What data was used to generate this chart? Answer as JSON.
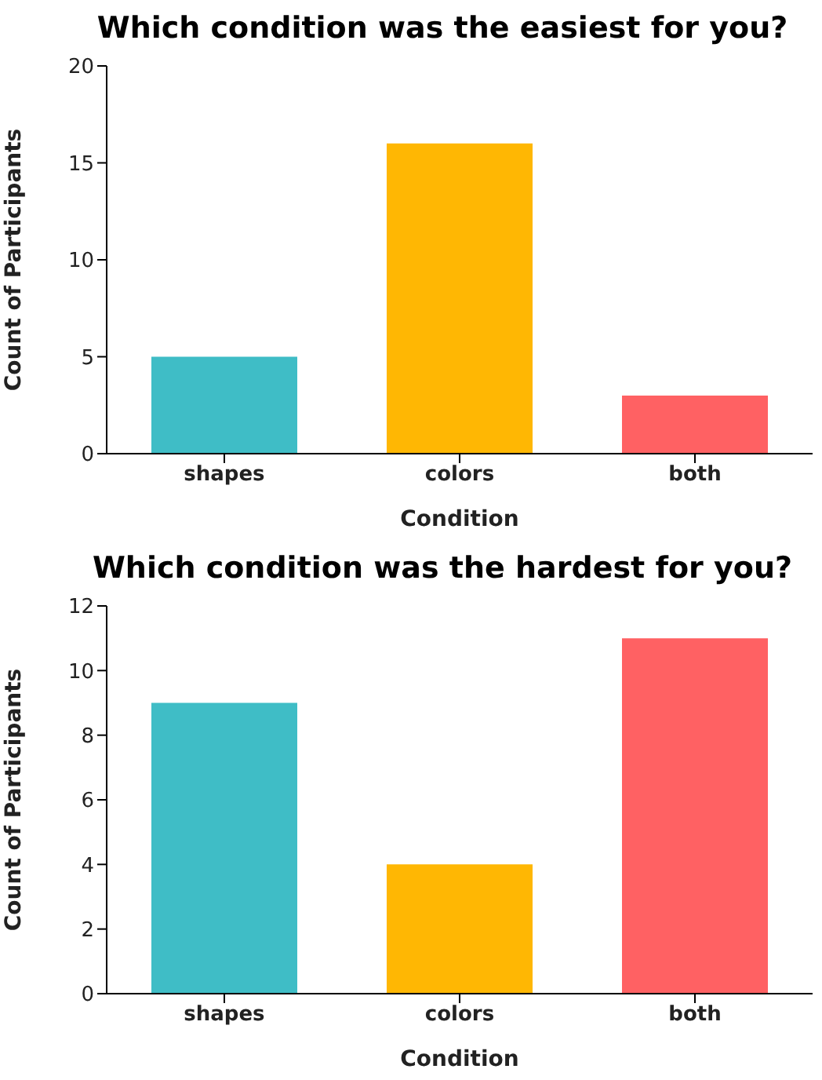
{
  "chart_data": [
    {
      "type": "bar",
      "title": "Which condition was the easiest for you?",
      "xlabel": "Condition",
      "ylabel": "Count of Participants",
      "categories": [
        "shapes",
        "colors",
        "both"
      ],
      "values": [
        5,
        16,
        3
      ],
      "colors": [
        "#3fbdc6",
        "#ffb703",
        "#ff6163"
      ],
      "ylim": [
        0,
        20
      ],
      "yticks": [
        0,
        5,
        10,
        15,
        20
      ],
      "grid": false,
      "legend": false
    },
    {
      "type": "bar",
      "title": "Which condition was the hardest for you?",
      "xlabel": "Condition",
      "ylabel": "Count of Participants",
      "categories": [
        "shapes",
        "colors",
        "both"
      ],
      "values": [
        9,
        4,
        11
      ],
      "colors": [
        "#3fbdc6",
        "#ffb703",
        "#ff6163"
      ],
      "ylim": [
        0,
        12
      ],
      "yticks": [
        0,
        2,
        4,
        6,
        8,
        10,
        12
      ],
      "grid": false,
      "legend": false
    }
  ]
}
